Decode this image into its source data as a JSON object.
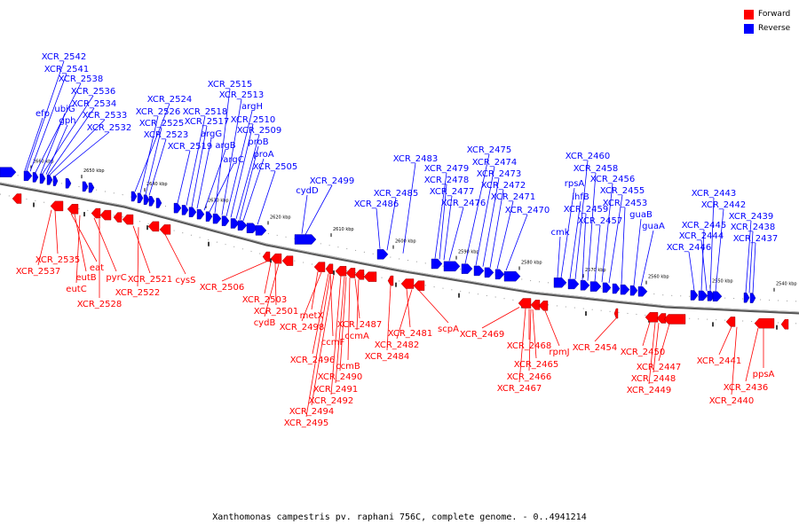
{
  "legend": [
    {
      "label": "Forward",
      "color": "#ff0000"
    },
    {
      "label": "Reverse",
      "color": "#0000ff"
    }
  ],
  "caption": "Xanthomonas campestris pv. raphani 756C, complete genome. - 0..4941214",
  "ticks": [
    "2660 kbp",
    "2650 kbp",
    "2640 kbp",
    "2630 kbp",
    "2620 kbp",
    "2610 kbp",
    "2600 kbp",
    "2590 kbp",
    "2580 kbp",
    "2570 kbp",
    "2560 kbp",
    "2550 kbp",
    "2540 kbp"
  ],
  "reverse_labels": [
    "XCR_2542",
    "XCR_2541",
    "XCR_2538",
    "XCR_2536",
    "XCR_2534",
    "efp",
    "ubiG",
    "XCR_2533",
    "gph",
    "XCR_2532",
    "XCR_2524",
    "XCR_2526",
    "XCR_2525",
    "XCR_2523",
    "XCR_2519",
    "XCR_2518",
    "XCR_2517",
    "argG",
    "argB",
    "argC",
    "XCR_2515",
    "XCR_2513",
    "argH",
    "XCR_2510",
    "XCR_2509",
    "proB",
    "proA",
    "XCR_2505",
    "cydD",
    "XCR_2499",
    "XCR_2486",
    "XCR_2485",
    "XCR_2483",
    "XCR_2479",
    "XCR_2478",
    "XCR_2477",
    "XCR_2476",
    "XCR_2475",
    "XCR_2474",
    "XCR_2473",
    "XCR_2472",
    "XCR_2471",
    "XCR_2470",
    "cmk",
    "rpsA",
    "ihfB",
    "XCR_2460",
    "XCR_2459",
    "XCR_2458",
    "XCR_2457",
    "XCR_2456",
    "XCR_2455",
    "XCR_2453",
    "guaB",
    "guaA",
    "XCR_2446",
    "XCR_2445",
    "XCR_2444",
    "XCR_2443",
    "XCR_2442",
    "XCR_2439",
    "XCR_2438",
    "XCR_2437"
  ],
  "forward_labels": [
    "XCR_2535",
    "XCR_2537",
    "eat",
    "eutB",
    "eutC",
    "pyrC",
    "XCR_2528",
    "XCR_2521",
    "XCR_2522",
    "cysS",
    "XCR_2506",
    "XCR_2503",
    "XCR_2501",
    "cydB",
    "metX",
    "XCR_2498",
    "ccmF",
    "XCR_2496",
    "XCR_2487",
    "ccmA",
    "ccmB",
    "XCR_2490",
    "XCR_2491",
    "XCR_2492",
    "XCR_2494",
    "XCR_2495",
    "XCR_2484",
    "XCR_2481",
    "XCR_2482",
    "scpA",
    "XCR_2469",
    "XCR_2468",
    "rpmJ",
    "XCR_2465",
    "XCR_2466",
    "XCR_2467",
    "XCR_2454",
    "XCR_2450",
    "XCR_2447",
    "XCR_2448",
    "XCR_2449",
    "XCR_2441",
    "XCR_2436",
    "ppsA",
    "XCR_2440"
  ]
}
